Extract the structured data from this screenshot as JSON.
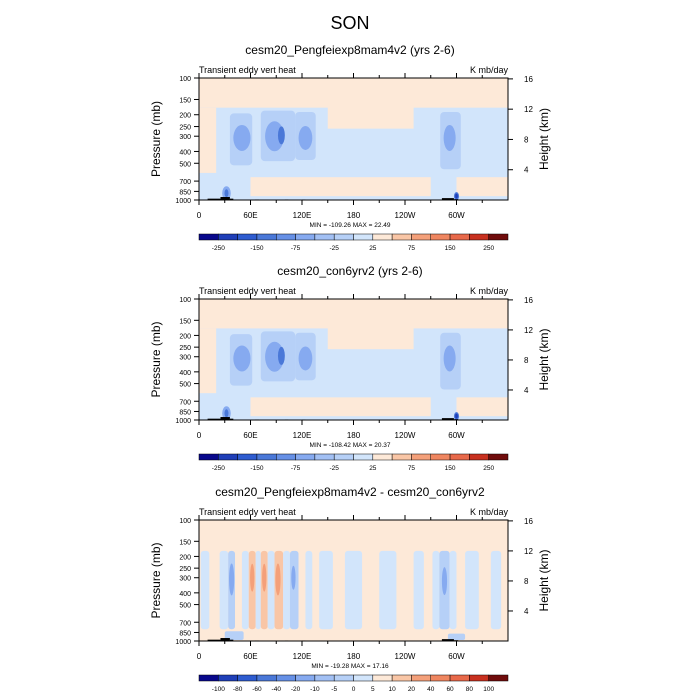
{
  "figure_title": "SON",
  "colors": {
    "neg5": "#08088c",
    "neg4": "#1f3fb8",
    "neg3": "#4a78d8",
    "neg2": "#86aaf0",
    "neg1": "#b6d0f7",
    "neutral_neg": "#d2e5fb",
    "neutral_pos": "#fde9d8",
    "pos1": "#f9c6a6",
    "pos2": "#f4a07a",
    "pos3": "#e8694a",
    "pos4": "#c8301f",
    "pos5": "#700c0c",
    "terrain": "#000000"
  },
  "chart_data": [
    {
      "type": "heatmap",
      "title": "cesm20_Pengfeiexp8mam4v2 (yrs 2-6)",
      "left_label": "Transient eddy vert heat",
      "right_label": "K mb/day",
      "xlabel": "",
      "ylabel": "Pressure (mb)",
      "ylabel_right": "Height (km)",
      "x_ticks": [
        "0",
        "60E",
        "120E",
        "180",
        "120W",
        "60W"
      ],
      "x_range": [
        0,
        360
      ],
      "y_ticks": [
        "100",
        "150",
        "200",
        "250",
        "300",
        "400",
        "500",
        "700",
        "850",
        "1000"
      ],
      "y_range": [
        100,
        1000
      ],
      "y_scale": "log",
      "height_ticks": [
        "16",
        "12",
        "8",
        "4"
      ],
      "stats": "MIN = -109.26  MAX = 22.49",
      "colorbar_labels": [
        "-250",
        "-150",
        "-75",
        "-25",
        "25",
        "75",
        "150",
        "250"
      ],
      "colorbar_levels": [
        -300,
        -250,
        -200,
        -150,
        -100,
        -75,
        -50,
        -25,
        0,
        25,
        50,
        75,
        100,
        150,
        200,
        250,
        300
      ],
      "features": [
        {
          "region": "40E-60E",
          "levels": "200-500",
          "value": -50
        },
        {
          "region": "80E-100E",
          "levels": "200-450",
          "value": -75
        },
        {
          "region": "110E-130E",
          "levels": "200-450",
          "value": -50
        },
        {
          "region": "290E-300E",
          "levels": "200-500",
          "value": -50
        },
        {
          "region": "25E-35E",
          "levels": "850-1000",
          "value": -109.26
        }
      ]
    },
    {
      "type": "heatmap",
      "title": "cesm20_con6yrv2 (yrs 2-6)",
      "left_label": "Transient eddy vert heat",
      "right_label": "K mb/day",
      "xlabel": "",
      "ylabel": "Pressure (mb)",
      "ylabel_right": "Height (km)",
      "x_ticks": [
        "0",
        "60E",
        "120E",
        "180",
        "120W",
        "60W"
      ],
      "x_range": [
        0,
        360
      ],
      "y_ticks": [
        "100",
        "150",
        "200",
        "250",
        "300",
        "400",
        "500",
        "700",
        "850",
        "1000"
      ],
      "y_range": [
        100,
        1000
      ],
      "y_scale": "log",
      "height_ticks": [
        "16",
        "12",
        "8",
        "4"
      ],
      "stats": "MIN = -108.42  MAX = 20.37",
      "colorbar_labels": [
        "-250",
        "-150",
        "-75",
        "-25",
        "25",
        "75",
        "150",
        "250"
      ],
      "colorbar_levels": [
        -300,
        -250,
        -200,
        -150,
        -100,
        -75,
        -50,
        -25,
        0,
        25,
        50,
        75,
        100,
        150,
        200,
        250,
        300
      ],
      "features": [
        {
          "region": "40E-60E",
          "levels": "200-500",
          "value": -50
        },
        {
          "region": "80E-100E",
          "levels": "200-450",
          "value": -75
        },
        {
          "region": "110E-130E",
          "levels": "200-450",
          "value": -50
        },
        {
          "region": "290E-300E",
          "levels": "200-500",
          "value": -50
        },
        {
          "region": "25E-35E",
          "levels": "850-1000",
          "value": -108.42
        }
      ]
    },
    {
      "type": "heatmap",
      "title": "cesm20_Pengfeiexp8mam4v2 - cesm20_con6yrv2",
      "left_label": "Transient eddy vert heat",
      "right_label": "K mb/day",
      "xlabel": "",
      "ylabel": "Pressure (mb)",
      "ylabel_right": "Height (km)",
      "x_ticks": [
        "0",
        "60E",
        "120E",
        "180",
        "120W",
        "60W"
      ],
      "x_range": [
        0,
        360
      ],
      "y_ticks": [
        "100",
        "150",
        "200",
        "250",
        "300",
        "400",
        "500",
        "700",
        "850",
        "1000"
      ],
      "y_range": [
        100,
        1000
      ],
      "y_scale": "log",
      "height_ticks": [
        "16",
        "12",
        "8",
        "4"
      ],
      "stats": "MIN = -19.28  MAX = 17.16",
      "colorbar_labels": [
        "-100",
        "-80",
        "-60",
        "-40",
        "-20",
        "-10",
        "-5",
        "0",
        "5",
        "10",
        "20",
        "40",
        "60",
        "80",
        "100"
      ],
      "colorbar_levels": [
        -120,
        -100,
        -80,
        -60,
        -40,
        -20,
        -10,
        -5,
        0,
        5,
        10,
        20,
        40,
        60,
        80,
        100,
        120
      ],
      "features": [
        {
          "region": "30E-40E",
          "levels": "200-500",
          "value": -10
        },
        {
          "region": "60E-70E",
          "levels": "200-500",
          "value": 10
        },
        {
          "region": "80E-85E",
          "levels": "200-500",
          "value": 10
        },
        {
          "region": "95E-100E",
          "levels": "200-500",
          "value": 10
        },
        {
          "region": "280E-290E",
          "levels": "200-500",
          "value": -10
        }
      ]
    }
  ]
}
